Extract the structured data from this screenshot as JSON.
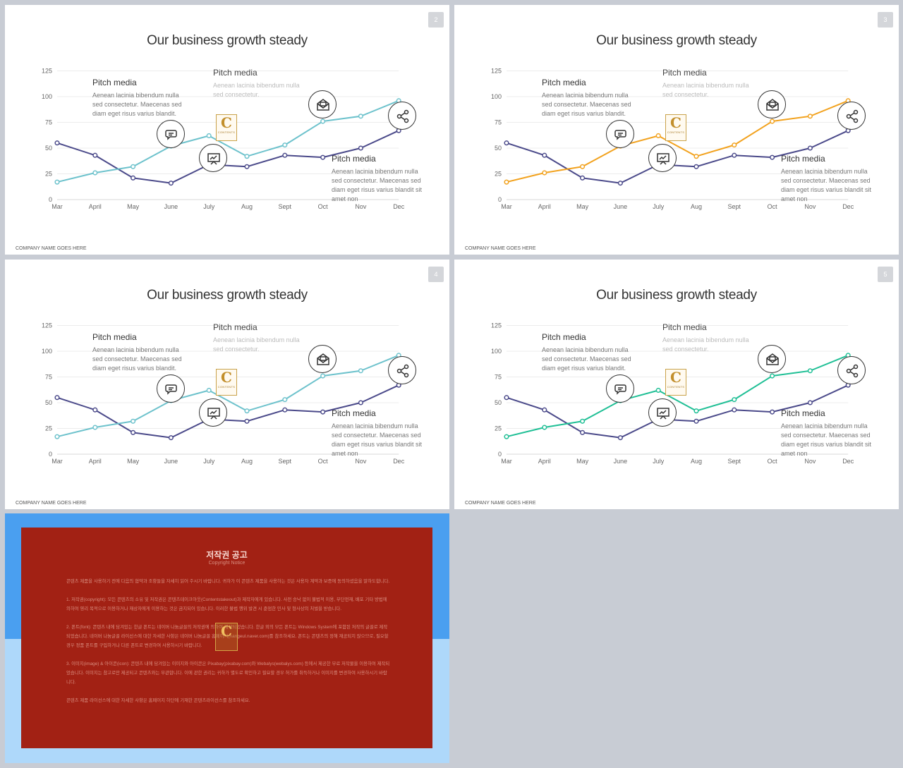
{
  "slides": [
    {
      "title": "Our business growth steady",
      "page": "2",
      "footer": "COMPANY NAME GOES HERE",
      "accent": "#6dc2cc",
      "notes": [
        {
          "heading": "Pitch media",
          "body": "Aenean lacinia bibendum nulla sed consectetur. Maecenas sed diam eget risus varius blandit."
        },
        {
          "heading": "Pitch media",
          "body": "Aenean lacinia bibendum nulla sed consectetur."
        },
        {
          "heading": "Pitch media",
          "body": "Aenean lacinia bibendum nulla sed consectetur. Maecenas sed diam eget risus varius blandit sit amet non"
        }
      ],
      "logo": {
        "letter": "C",
        "text": "CONTENTS"
      }
    },
    {
      "title": "Our business growth steady",
      "page": "3",
      "footer": "COMPANY NAME GOES HERE",
      "accent": "#f2a21e",
      "notes": [
        {
          "heading": "Pitch media",
          "body": "Aenean lacinia bibendum nulla sed consectetur. Maecenas sed diam eget risus varius blandit."
        },
        {
          "heading": "Pitch media",
          "body": "Aenean lacinia bibendum nulla sed consectetur."
        },
        {
          "heading": "Pitch media",
          "body": "Aenean lacinia bibendum nulla sed consectetur. Maecenas sed diam eget risus varius blandit sit amet non"
        }
      ],
      "logo": {
        "letter": "C",
        "text": "CONTENTS"
      }
    },
    {
      "title": "Our business growth steady",
      "page": "4",
      "footer": "COMPANY NAME GOES HERE",
      "accent": "#6dc2cc",
      "notes": [
        {
          "heading": "Pitch media",
          "body": "Aenean lacinia bibendum nulla sed consectetur. Maecenas sed diam eget risus varius blandit."
        },
        {
          "heading": "Pitch media",
          "body": "Aenean lacinia bibendum nulla sed consectetur."
        },
        {
          "heading": "Pitch media",
          "body": "Aenean lacinia bibendum nulla sed consectetur. Maecenas sed diam eget risus varius blandit sit amet non"
        }
      ],
      "logo": {
        "letter": "C",
        "text": "CONTENTS"
      }
    },
    {
      "title": "Our business growth steady",
      "page": "5",
      "footer": "COMPANY NAME GOES HERE",
      "accent": "#1fbf95",
      "notes": [
        {
          "heading": "Pitch media",
          "body": "Aenean lacinia bibendum nulla sed consectetur. Maecenas sed diam eget risus varius blandit."
        },
        {
          "heading": "Pitch media",
          "body": "Aenean lacinia bibendum nulla sed consectetur."
        },
        {
          "heading": "Pitch media",
          "body": "Aenean lacinia bibendum nulla sed consectetur. Maecenas sed diam eget risus varius blandit sit amet non"
        }
      ],
      "logo": {
        "letter": "C",
        "text": "CONTENTS"
      }
    }
  ],
  "icons": [
    "chat-icon",
    "presentation-icon",
    "mail-icon",
    "share-icon"
  ],
  "chart_data": {
    "type": "line",
    "categories": [
      "Mar",
      "April",
      "May",
      "June",
      "July",
      "Aug",
      "Sept",
      "Oct",
      "Nov",
      "Dec"
    ],
    "yticks": [
      "0",
      "25",
      "50",
      "75",
      "100",
      "125"
    ],
    "ylim": [
      0,
      125
    ],
    "grid": true,
    "series": [
      {
        "color": "#4b4a8a",
        "values": [
          55,
          43,
          21,
          16,
          34,
          32,
          43,
          41,
          50,
          67
        ]
      },
      {
        "color": "accent",
        "values": [
          17,
          26,
          32,
          52,
          62,
          42,
          53,
          76,
          81,
          96
        ]
      }
    ]
  },
  "notice": {
    "title": "저작권 공고",
    "subtitle": "Copyright Notice",
    "paragraphs": [
      "콘텐츠 제품을 사용하기 전에 다음의 협약과 조항들을 자세히 읽어 주시기 바랍니다. 귀하가 이 콘텐츠 제품을 사용하는 것은 사용자 계약과 보증에 동의하셨음을 말하도합니다.",
      "1. 저작권(copyright): 모든 콘텐츠의 소유 및 저작권은 콘텐츠테이크아웃(Contentstakeout)과 제작자에게 있습니다. 사전 승낙 없이 불법적 이용, 무단전재, 배포 기타 방법에 의하여 영리 목적으로 이용하거나 재상자에게 이용하는 것은 금지되어 있습니다. 이러한 불법 행위 발견 시 준엄한 민사 및 형사상의 처벌을 받습니다.",
      "2. 폰트(font): 콘텐츠 내에 담겨있는 한글 폰트는 네이버 나눔글꼴의 저작권에 의하여 제작되었습니다. 한글 외의 모든 폰트는 Windows System에 포함된 저작의 글꼴로 제작되었습니다. 네이버 나눔글꼴 라이선스에 대한 자세한 사항은 네이버 나눔글꼴 홈페이지(hangeul.naver.com)를 참조하세요. 폰트는 콘텐츠의 정해 재공되지 않으므로, 필요할 경우 정품 폰트를 구입하거나 다른 폰트로 변경하여 사용하시기 바랍니다.",
      "3. 이미지(image) & 아이콘(icon): 콘텐츠 내에 담겨있는 이미지와 아이콘은 Pixabay(pixabay.com)와 Webalys(webalys.com) 등에서 제공한 무료 저작물을 이용하여 제작되었습니다. 이미지는 참고로만 제공되고 콘텐츠와는 무관합니다. 이에 관한 권리는 귀하가 별도로 확인하고 필요할 경우 허가를 취득하거나 이미지를 변경하여 사용하시기 바랍니다.",
      "콘텐츠 제품 라이선스에 대한 자세한 사항은 홈페이지 하단에 기재한 콘텐츠라이선스를 참조하세요."
    ],
    "logo": {
      "letter": "C"
    }
  }
}
